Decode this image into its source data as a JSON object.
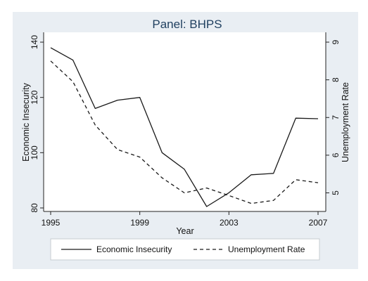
{
  "chart_data": {
    "type": "line",
    "title": "Panel: BHPS",
    "xlabel": "Year",
    "ylabel": "Economic Insecurity",
    "y2label": "Unemployment Rate",
    "x": [
      1995,
      1996,
      1997,
      1998,
      1999,
      2000,
      2001,
      2002,
      2003,
      2004,
      2005,
      2006,
      2007
    ],
    "x_ticks": [
      "1995",
      "1999",
      "2003",
      "2007"
    ],
    "xlim": [
      1995,
      2007
    ],
    "y_ticks": [
      "80",
      "100",
      "120",
      "140"
    ],
    "ylim": [
      80,
      140
    ],
    "y2_ticks": [
      "5",
      "6",
      "7",
      "8",
      "9"
    ],
    "y2lim": [
      4.6,
      9.0
    ],
    "series": [
      {
        "name": "Economic Insecurity",
        "axis": "left",
        "style": "solid",
        "values": [
          138,
          133.5,
          116,
          119,
          120,
          100,
          94,
          80.5,
          85.5,
          92,
          92.5,
          112.5,
          112.3
        ]
      },
      {
        "name": "Unemployment Rate",
        "axis": "right",
        "style": "dashed",
        "values": [
          8.5,
          7.95,
          6.8,
          6.15,
          5.95,
          5.4,
          5.0,
          5.13,
          4.93,
          4.72,
          4.8,
          5.35,
          5.27
        ]
      }
    ],
    "grid": false,
    "legend": "bottom"
  },
  "colors": {
    "background": "#e9eef3",
    "plot_area": "#ffffff",
    "title": "#1f3f5f",
    "line": "#1a1a1a"
  }
}
